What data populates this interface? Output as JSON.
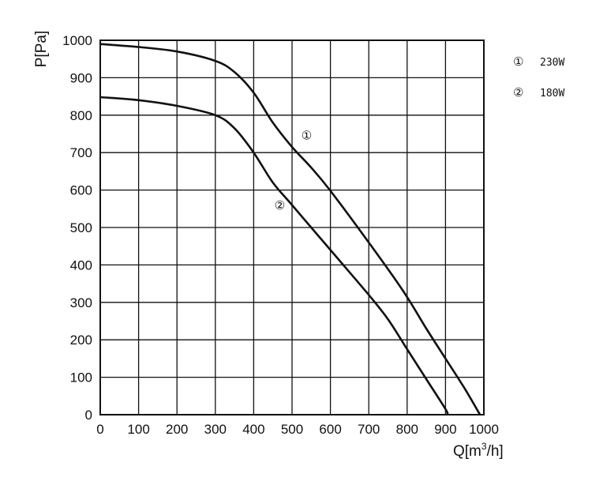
{
  "chart_data": {
    "type": "line",
    "xlabel_main": "Q[m",
    "xlabel_sup": "3",
    "xlabel_end": "/h]",
    "ylabel": "P[Pa]",
    "xlim": [
      0,
      1000
    ],
    "ylim": [
      0,
      1000
    ],
    "x_ticks": [
      "0",
      "100",
      "200",
      "300",
      "400",
      "500",
      "600",
      "700",
      "800",
      "900",
      "1000"
    ],
    "y_ticks": [
      "0",
      "100",
      "200",
      "300",
      "400",
      "500",
      "600",
      "700",
      "800",
      "900",
      "1000"
    ],
    "grid": true,
    "legend": {
      "placement": "top-right",
      "entries": [
        {
          "marker": "①",
          "label": "230W"
        },
        {
          "marker": "②",
          "label": "180W"
        }
      ]
    },
    "series": [
      {
        "marker": "①",
        "color": "#111111",
        "points": [
          [
            0,
            990
          ],
          [
            100,
            982
          ],
          [
            200,
            970
          ],
          [
            300,
            945
          ],
          [
            350,
            915
          ],
          [
            400,
            860
          ],
          [
            450,
            780
          ],
          [
            500,
            715
          ],
          [
            550,
            660
          ],
          [
            600,
            598
          ],
          [
            700,
            460
          ],
          [
            790,
            330
          ],
          [
            850,
            230
          ],
          [
            900,
            150
          ],
          [
            950,
            70
          ],
          [
            990,
            0
          ]
        ]
      },
      {
        "marker": "②",
        "color": "#111111",
        "points": [
          [
            0,
            848
          ],
          [
            100,
            840
          ],
          [
            200,
            825
          ],
          [
            300,
            800
          ],
          [
            350,
            765
          ],
          [
            400,
            700
          ],
          [
            450,
            620
          ],
          [
            500,
            560
          ],
          [
            600,
            440
          ],
          [
            700,
            320
          ],
          [
            750,
            255
          ],
          [
            800,
            175
          ],
          [
            850,
            95
          ],
          [
            900,
            15
          ],
          [
            905,
            0
          ]
        ]
      }
    ],
    "curve_labels": [
      {
        "text": "①",
        "x": 538,
        "y": 735
      },
      {
        "text": "②",
        "x": 468,
        "y": 548
      }
    ]
  }
}
